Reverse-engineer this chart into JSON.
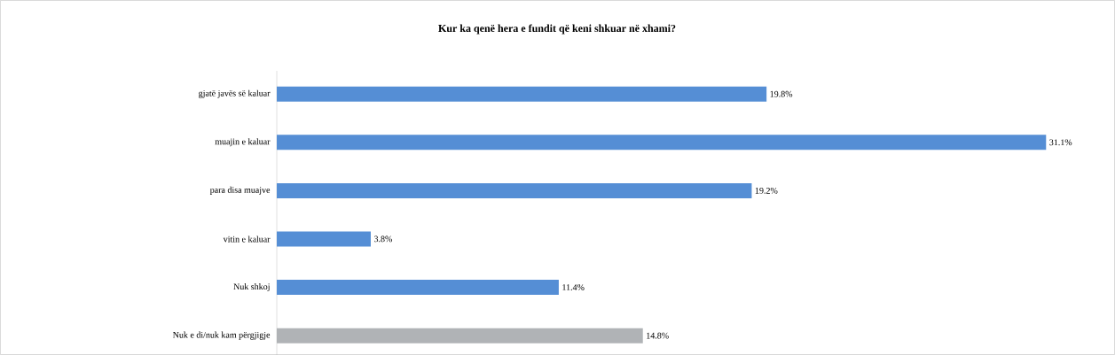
{
  "chart_data": {
    "type": "bar",
    "orientation": "horizontal",
    "title": "Kur ka qenë hera e fundit që keni shkuar në xhami?",
    "categories": [
      "gjatë javës së kaluar",
      "muajin e kaluar",
      "para disa muajve",
      "vitin e kaluar",
      "Nuk shkoj",
      "Nuk e di/nuk kam përgjigje"
    ],
    "values": [
      19.8,
      31.1,
      19.2,
      3.8,
      11.4,
      14.8
    ],
    "colors": [
      "#558ed5",
      "#558ed5",
      "#558ed5",
      "#558ed5",
      "#558ed5",
      "#b0b3b6"
    ],
    "value_labels": [
      "19.8%",
      "31.1%",
      "19.2%",
      "3.8%",
      "11.4%",
      "14.8%"
    ]
  }
}
